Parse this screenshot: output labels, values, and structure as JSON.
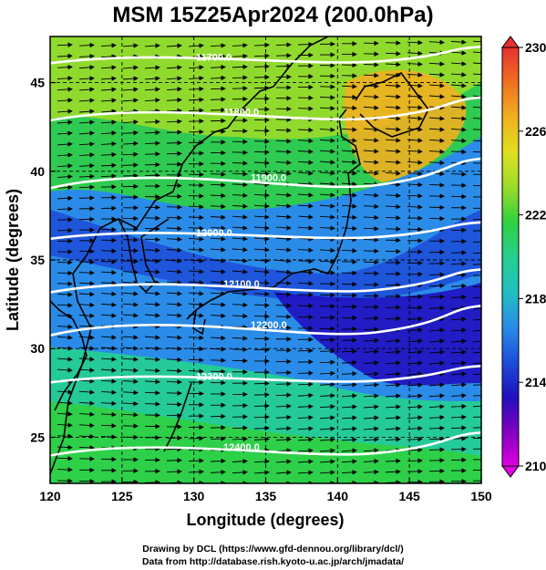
{
  "title": "MSM 15Z25Apr2024 (200.0hPa)",
  "x_axis": {
    "label": "Longitude (degrees)",
    "range": [
      120,
      150
    ],
    "ticks": [
      120,
      125,
      130,
      135,
      140,
      145,
      150
    ]
  },
  "y_axis": {
    "label": "Latitude  (degrees)",
    "range": [
      22.4,
      47.6
    ],
    "ticks": [
      25,
      30,
      35,
      40,
      45
    ]
  },
  "colorbar": {
    "range": [
      210,
      230
    ],
    "ticks": [
      210,
      214,
      218,
      222,
      226,
      230
    ],
    "colors": [
      "#e000e0",
      "#8000c0",
      "#2010c0",
      "#1d4fd8",
      "#2a8ce8",
      "#20c0c0",
      "#25d090",
      "#30d040",
      "#9bdc2a",
      "#e0e020",
      "#f0b020",
      "#f07020",
      "#e83030"
    ]
  },
  "contours": [
    {
      "label": "11700.0",
      "lat": 46.4
    },
    {
      "label": "11800.0",
      "lat": 43.3
    },
    {
      "label": "11900.0",
      "lat": 39.6
    },
    {
      "label": "12000.0",
      "lat": 36.5
    },
    {
      "label": "12100.0",
      "lat": 33.6
    },
    {
      "label": "12200.0",
      "lat": 31.3
    },
    {
      "label": "12300.0",
      "lat": 28.4
    },
    {
      "label": "12400.0",
      "lat": 24.4
    }
  ],
  "credits": [
    "Drawing by DCL (https://www.gfd-dennou.org/library/dcl/)",
    "Data from http://database.rish.kyoto-u.ac.jp/arch/jmadata/"
  ]
}
